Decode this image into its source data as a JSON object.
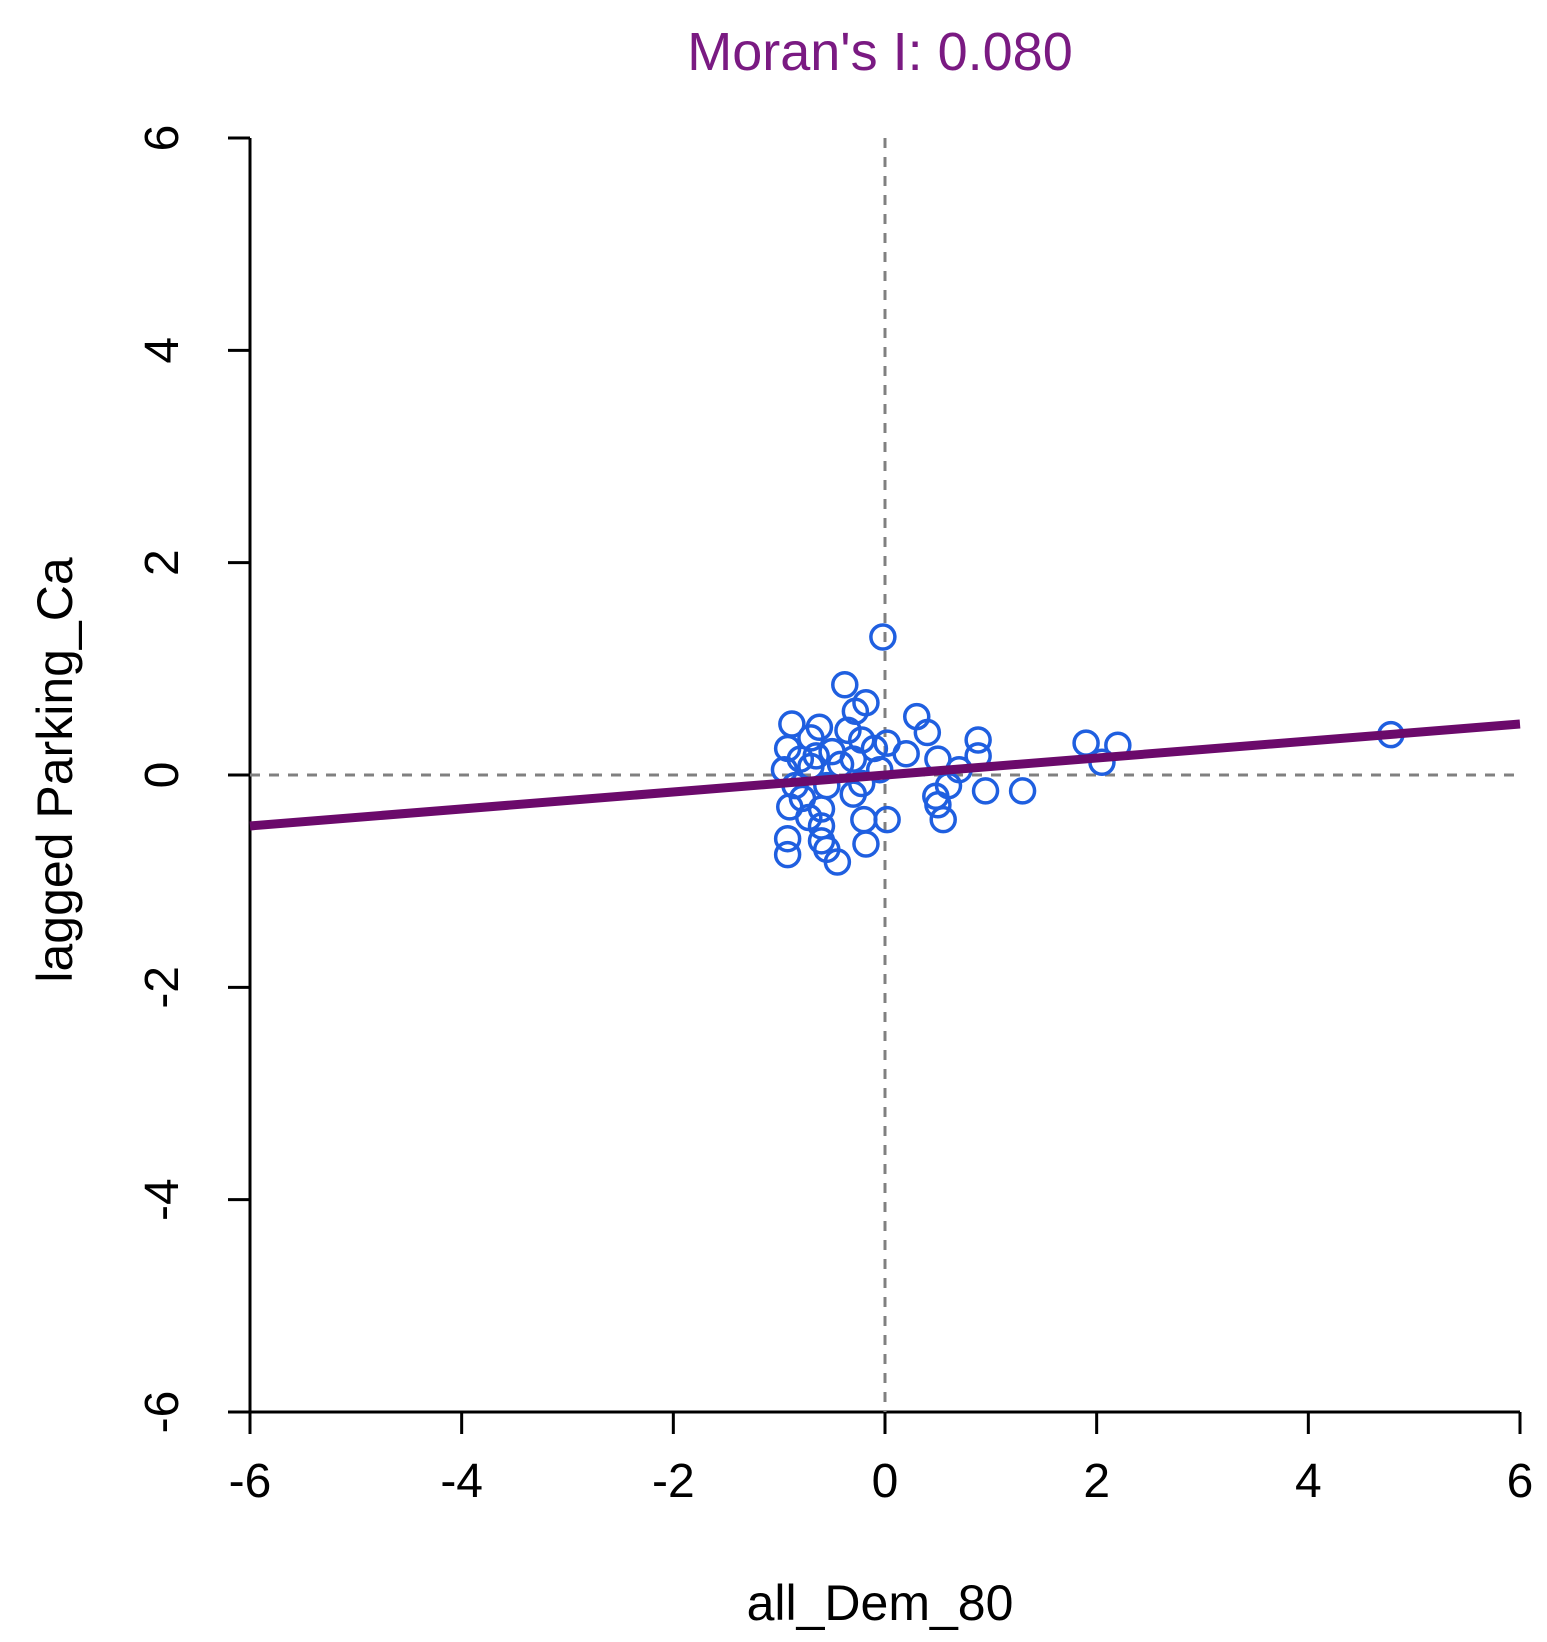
{
  "chart_data": {
    "type": "scatter",
    "title": "Moran's I: 0.080",
    "xlabel": "all_Dem_80",
    "ylabel": "lagged Parking_Ca",
    "xlim": [
      -6,
      6
    ],
    "ylim": [
      -6,
      6
    ],
    "x_ticks": [
      "-6",
      "-4",
      "-2",
      "0",
      "2",
      "4",
      "6"
    ],
    "y_ticks": [
      "-6",
      "-4",
      "-2",
      "0",
      "2",
      "4",
      "6"
    ],
    "reference_lines": {
      "x": 0,
      "y": 0,
      "style": "dashed"
    },
    "fit_line": {
      "slope": 0.08,
      "intercept": 0.0
    },
    "grid": false,
    "colors": {
      "title": "#7a1a82",
      "points": "#1f5fe0",
      "fit_line": "#6b0a6b",
      "reference": "#808080",
      "axes": "#000000"
    },
    "points": [
      {
        "x": -0.02,
        "y": 1.3
      },
      {
        "x": -0.38,
        "y": 0.85
      },
      {
        "x": -0.18,
        "y": 0.68
      },
      {
        "x": -0.28,
        "y": 0.6
      },
      {
        "x": 0.3,
        "y": 0.55
      },
      {
        "x": -0.88,
        "y": 0.48
      },
      {
        "x": -0.62,
        "y": 0.45
      },
      {
        "x": -0.35,
        "y": 0.42
      },
      {
        "x": 0.4,
        "y": 0.4
      },
      {
        "x": -0.7,
        "y": 0.35
      },
      {
        "x": -0.22,
        "y": 0.33
      },
      {
        "x": 0.02,
        "y": 0.3
      },
      {
        "x": 0.88,
        "y": 0.33
      },
      {
        "x": 1.9,
        "y": 0.3
      },
      {
        "x": 2.2,
        "y": 0.28
      },
      {
        "x": 4.78,
        "y": 0.38
      },
      {
        "x": -0.92,
        "y": 0.25
      },
      {
        "x": -0.5,
        "y": 0.22
      },
      {
        "x": -0.1,
        "y": 0.25
      },
      {
        "x": 0.2,
        "y": 0.2
      },
      {
        "x": 0.88,
        "y": 0.18
      },
      {
        "x": -0.8,
        "y": 0.15
      },
      {
        "x": -0.65,
        "y": 0.18
      },
      {
        "x": -0.3,
        "y": 0.15
      },
      {
        "x": 0.5,
        "y": 0.15
      },
      {
        "x": 2.05,
        "y": 0.12
      },
      {
        "x": -0.95,
        "y": 0.05
      },
      {
        "x": -0.7,
        "y": 0.08
      },
      {
        "x": -0.42,
        "y": 0.1
      },
      {
        "x": -0.05,
        "y": 0.05
      },
      {
        "x": 0.7,
        "y": 0.05
      },
      {
        "x": -0.85,
        "y": -0.1
      },
      {
        "x": -0.55,
        "y": -0.1
      },
      {
        "x": -0.22,
        "y": -0.08
      },
      {
        "x": 0.6,
        "y": -0.1
      },
      {
        "x": 0.95,
        "y": -0.15
      },
      {
        "x": 1.3,
        "y": -0.15
      },
      {
        "x": -0.78,
        "y": -0.22
      },
      {
        "x": -0.3,
        "y": -0.18
      },
      {
        "x": 0.48,
        "y": -0.2
      },
      {
        "x": -0.9,
        "y": -0.3
      },
      {
        "x": -0.6,
        "y": -0.32
      },
      {
        "x": 0.5,
        "y": -0.28
      },
      {
        "x": -0.72,
        "y": -0.4
      },
      {
        "x": -0.2,
        "y": -0.42
      },
      {
        "x": 0.02,
        "y": -0.42
      },
      {
        "x": 0.55,
        "y": -0.42
      },
      {
        "x": -0.6,
        "y": -0.48
      },
      {
        "x": -0.92,
        "y": -0.6
      },
      {
        "x": -0.6,
        "y": -0.62
      },
      {
        "x": -0.18,
        "y": -0.65
      },
      {
        "x": -0.92,
        "y": -0.75
      },
      {
        "x": -0.55,
        "y": -0.7
      },
      {
        "x": -0.45,
        "y": -0.82
      }
    ]
  }
}
